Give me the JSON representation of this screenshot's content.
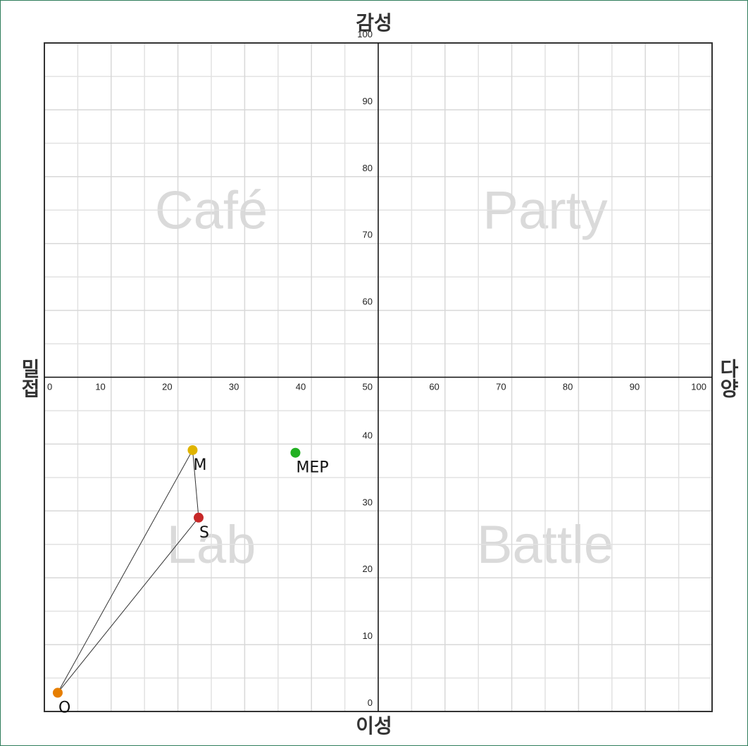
{
  "chart_data": {
    "type": "scatter",
    "axis_labels": {
      "top": "감성",
      "bottom": "이성",
      "left": "밀접",
      "right": "다양"
    },
    "quadrants": [
      "Café",
      "Party",
      "Lab",
      "Battle"
    ],
    "xlim": [
      0,
      100
    ],
    "ylim": [
      0,
      100
    ],
    "xticks": [
      0,
      10,
      20,
      30,
      40,
      50,
      60,
      70,
      80,
      90,
      100
    ],
    "yticks": [
      0,
      10,
      20,
      30,
      40,
      50,
      60,
      70,
      80,
      90,
      100
    ],
    "xminor": [
      5,
      15,
      25,
      35,
      45,
      55,
      65,
      75,
      85,
      95
    ],
    "yminor": [
      5,
      15,
      25,
      35,
      45,
      55,
      65,
      75,
      85,
      95
    ],
    "grid": true,
    "points": [
      {
        "name": "M",
        "x": 22.2,
        "y": 39.1,
        "color": "#e0b400"
      },
      {
        "name": "S",
        "x": 23.1,
        "y": 29.0,
        "color": "#c62828"
      },
      {
        "name": "O",
        "x": 2.0,
        "y": 2.8,
        "color": "#e67e00"
      },
      {
        "name": "MEP",
        "x": 37.6,
        "y": 38.7,
        "color": "#22b022"
      }
    ],
    "links": [
      {
        "from": "O",
        "to": "M"
      },
      {
        "from": "O",
        "to": "S"
      },
      {
        "from": "M",
        "to": "S"
      }
    ]
  }
}
